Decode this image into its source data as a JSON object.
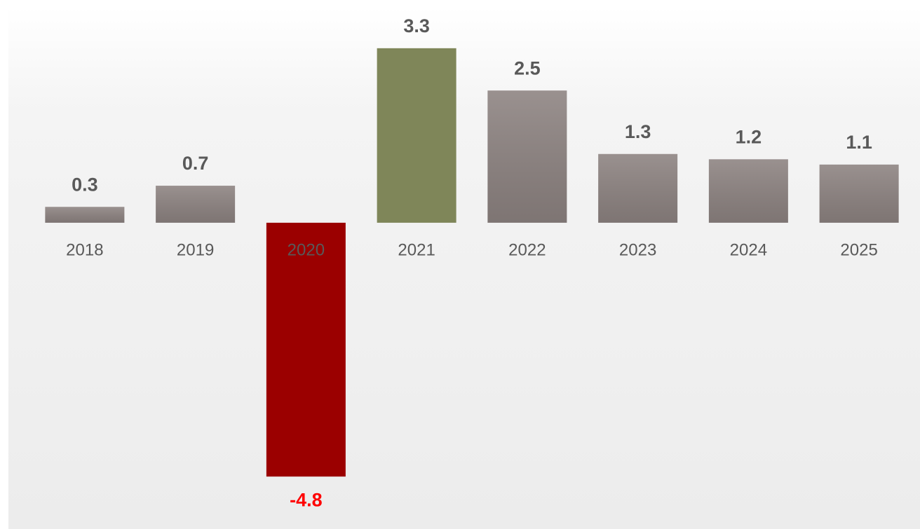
{
  "chart_data": {
    "type": "bar",
    "categories": [
      "2018",
      "2019",
      "2020",
      "2021",
      "2022",
      "2023",
      "2024",
      "2025"
    ],
    "values": [
      0.3,
      0.7,
      -4.8,
      3.3,
      2.5,
      1.3,
      1.2,
      1.1
    ],
    "colors": [
      "#8c8280",
      "#8c8280",
      "#9b0000",
      "#7f8659",
      "#8c8280",
      "#8c8280",
      "#8c8280",
      "#8c8280"
    ],
    "label_color": "#595959",
    "negative_label_color": "#ff0000",
    "ylim": [
      -5.5,
      4
    ],
    "grid": false
  }
}
